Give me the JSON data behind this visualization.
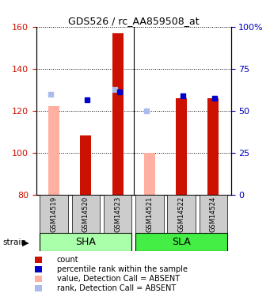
{
  "title": "GDS526 / rc_AA859508_at",
  "samples": [
    "GSM14519",
    "GSM14520",
    "GSM14523",
    "GSM14521",
    "GSM14522",
    "GSM14524"
  ],
  "ylim": [
    80,
    160
  ],
  "yticks_left": [
    80,
    100,
    120,
    140,
    160
  ],
  "right_ticks_labels": [
    "0",
    "25",
    "50",
    "75",
    "100%"
  ],
  "bar_values_red": [
    null,
    108,
    157,
    null,
    126,
    126
  ],
  "bar_values_pink": [
    122,
    null,
    null,
    100,
    null,
    null
  ],
  "dot_blue": [
    null,
    125,
    129,
    null,
    127,
    126
  ],
  "dot_lightblue": [
    128,
    null,
    130,
    120,
    null,
    null
  ],
  "color_red": "#CC1100",
  "color_pink": "#FFB0A0",
  "color_blue": "#0000CC",
  "color_lightblue": "#AABBEE",
  "bar_width": 0.35,
  "left_tick_color": "#CC1100",
  "right_tick_color": "#0000BB",
  "group_sha_color": "#AAFFAA",
  "group_sla_color": "#44EE44",
  "sample_box_color": "#CCCCCC",
  "legend_items": [
    {
      "color": "#CC1100",
      "label": "count"
    },
    {
      "color": "#0000CC",
      "label": "percentile rank within the sample"
    },
    {
      "color": "#FFB0A0",
      "label": "value, Detection Call = ABSENT"
    },
    {
      "color": "#AABBEE",
      "label": "rank, Detection Call = ABSENT"
    }
  ]
}
